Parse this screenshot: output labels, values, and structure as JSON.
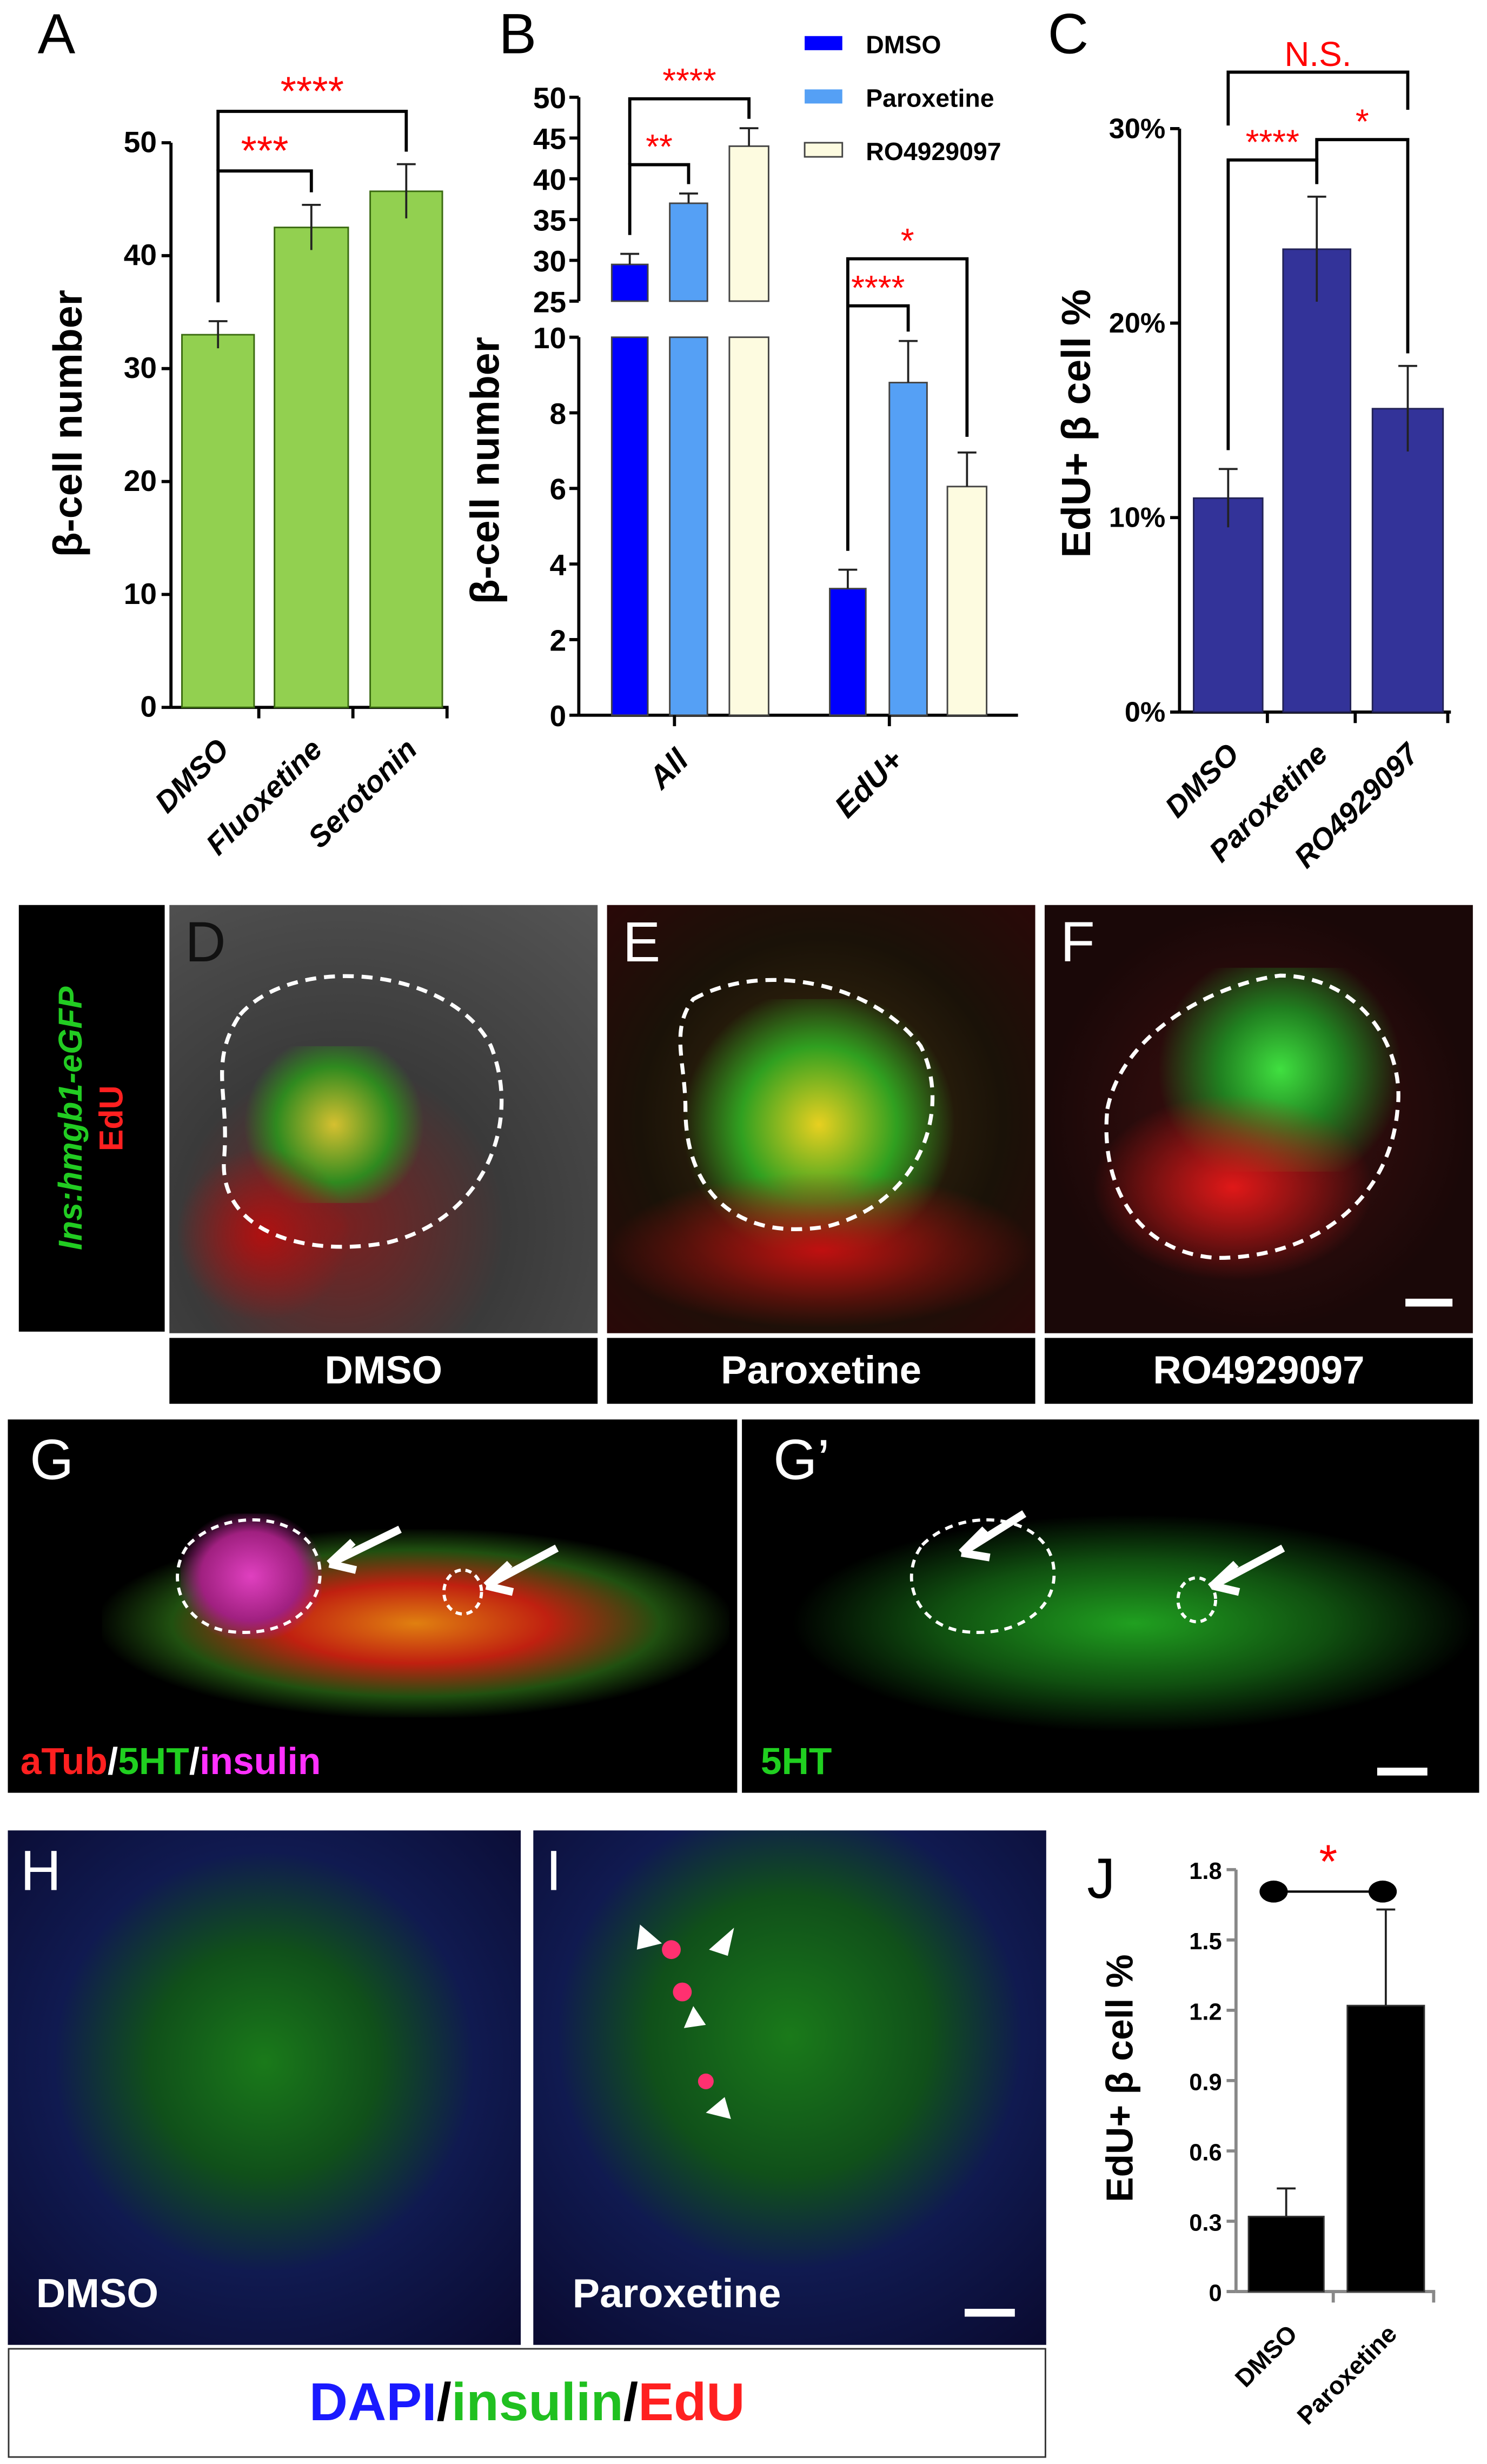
{
  "panels": {
    "A": "A",
    "B": "B",
    "C": "C",
    "D": "D",
    "E": "E",
    "F": "F",
    "G": "G",
    "G2": "G’",
    "H": "H",
    "I": "I",
    "J": "J"
  },
  "colors": {
    "dmso_b": "#0000ff",
    "paroxetine_b": "#55a0f5",
    "ro_b": "#fdfbe0",
    "panelA": "#92d050",
    "panelC": "#333399",
    "panelJ": "#000000",
    "significance": "#ff0000"
  },
  "stain_label_D": {
    "line1": "Ins:hmgb1-eGFP",
    "line2": "EdU"
  },
  "condition_labels": {
    "D": "DMSO",
    "E": "Paroxetine",
    "F": "RO4929097",
    "H": "DMSO",
    "I": "Paroxetine"
  },
  "stain_label_G": {
    "a": "aTub",
    "sep1": "/",
    "b": "5HT",
    "sep2": "/",
    "c": "insulin"
  },
  "stain_label_G2": "5HT",
  "legend_HI": {
    "a": "DAPI",
    "sep1": "/",
    "b": "insulin",
    "sep2": "/",
    "c": "EdU"
  },
  "chart_data": [
    {
      "panel": "A",
      "type": "bar",
      "categories": [
        "DMSO",
        "Fluoxetine",
        "Serotonin"
      ],
      "values": [
        33,
        42.5,
        45.7
      ],
      "errors": [
        1.2,
        2.0,
        2.4
      ],
      "ylabel": "β-cell number",
      "ylim": [
        0,
        50
      ],
      "yticks": [
        "0",
        "10",
        "20",
        "30",
        "40",
        "50"
      ],
      "color": "#92d050",
      "significance": [
        {
          "from": 0,
          "to": 1,
          "label": "***"
        },
        {
          "from": 0,
          "to": 2,
          "label": "****"
        }
      ]
    },
    {
      "panel": "B",
      "type": "bar",
      "categories": [
        "All",
        "EdU+"
      ],
      "ylabel": "β-cell number",
      "axis_break": [
        10,
        25
      ],
      "yticks_lower": [
        "0",
        "2",
        "4",
        "6",
        "8",
        "10"
      ],
      "yticks_upper": [
        "25",
        "30",
        "35",
        "40",
        "45",
        "50"
      ],
      "legend": "top-right",
      "series": [
        {
          "name": "DMSO",
          "values": [
            29.5,
            3.35
          ],
          "errors": [
            1.3,
            0.5
          ],
          "color": "#0000ff"
        },
        {
          "name": "Paroxetine",
          "values": [
            37,
            8.8
          ],
          "errors": [
            1.2,
            1.1
          ],
          "color": "#55a0f5"
        },
        {
          "name": "RO4929097",
          "values": [
            44,
            6.05
          ],
          "errors": [
            2.2,
            0.9
          ],
          "color": "#fdfbe0"
        }
      ],
      "significance": [
        {
          "group": 0,
          "from": 0,
          "to": 1,
          "label": "**"
        },
        {
          "group": 0,
          "from": 0,
          "to": 2,
          "label": "****"
        },
        {
          "group": 1,
          "from": 0,
          "to": 1,
          "label": "****"
        },
        {
          "group": 1,
          "from": 0,
          "to": 2,
          "label": "*"
        }
      ]
    },
    {
      "panel": "C",
      "type": "bar",
      "categories": [
        "DMSO",
        "Paroxetine",
        "RO4929097"
      ],
      "values": [
        11,
        23.8,
        15.6
      ],
      "errors": [
        1.5,
        2.7,
        2.2
      ],
      "ylabel": "EdU+ β cell %",
      "ylim": [
        0,
        30
      ],
      "yticks": [
        "0%",
        "10%",
        "20%",
        "30%"
      ],
      "color": "#333399",
      "significance": [
        {
          "from": 0,
          "to": 1,
          "label": "****"
        },
        {
          "from": 1,
          "to": 2,
          "label": "*"
        },
        {
          "from": 0,
          "to": 2,
          "label": "N.S."
        }
      ]
    },
    {
      "panel": "J",
      "type": "bar",
      "categories": [
        "DMSO",
        "Paroxetine"
      ],
      "values": [
        0.32,
        1.22
      ],
      "errors": [
        0.12,
        0.41
      ],
      "ylabel": "EdU+ β cell %",
      "ylim": [
        0,
        1.8
      ],
      "yticks": [
        "0",
        "0.3",
        "0.6",
        "0.9",
        "1.2",
        "1.5",
        "1.8"
      ],
      "color": "#000000",
      "significance": [
        {
          "from": 0,
          "to": 1,
          "label": "*"
        }
      ]
    }
  ]
}
